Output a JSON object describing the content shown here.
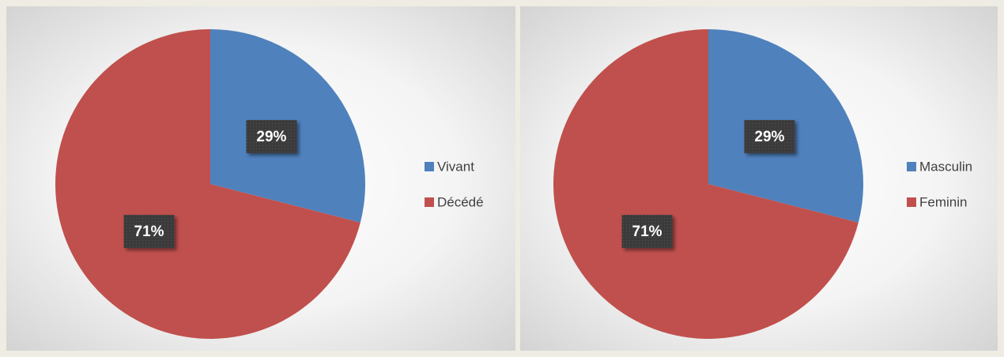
{
  "chart_data": [
    {
      "type": "pie",
      "categories": [
        "Vivant",
        "Décédé"
      ],
      "values": [
        29,
        71
      ],
      "value_labels": [
        "29%",
        "71%"
      ],
      "colors": [
        "#4f81bd",
        "#c0504d"
      ],
      "legend": "right"
    },
    {
      "type": "pie",
      "categories": [
        "Masculin",
        "Feminin"
      ],
      "values": [
        29,
        71
      ],
      "value_labels": [
        "29%",
        "71%"
      ],
      "colors": [
        "#4f81bd",
        "#c0504d"
      ],
      "legend": "right"
    }
  ]
}
